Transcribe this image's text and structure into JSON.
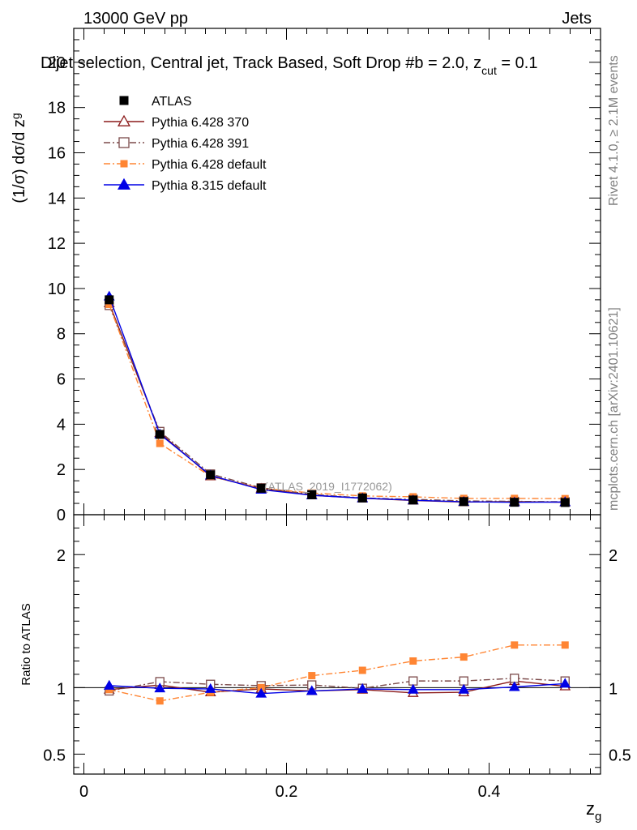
{
  "header": {
    "energy_label": "13000 GeV pp",
    "category_label": "Jets",
    "selection_title": "Dijet selection, Central jet, Track Based, Soft Drop #b = 2.0, z",
    "zcut_sub": "cut",
    "zcut_value": " = 0.1",
    "analysis_id": "(ATLAS_2019_I1772062)"
  },
  "side_labels": {
    "rivet": "Rivet 4.1.0, ≥ 2.1M events",
    "mcplots": "mcplots.cern.ch [arXiv:2401.10621]"
  },
  "chart_data": [
    {
      "type": "line",
      "panel": "main",
      "title": "Dijet selection, Central jet, Track Based, Soft Drop #b = 2.0, z_cut = 0.1",
      "ylabel_prefix": "(1/σ) dσ/d z",
      "ylabel_sub": "g",
      "xlabel": "z",
      "xlabel_sub": "g",
      "xlim": [
        -0.01,
        0.51
      ],
      "ylim": [
        0,
        21.5
      ],
      "yticks": [
        0,
        2,
        4,
        6,
        8,
        10,
        12,
        14,
        16,
        18,
        20
      ],
      "xticks": [
        0,
        0.2,
        0.4
      ],
      "x": [
        0.025,
        0.075,
        0.125,
        0.175,
        0.225,
        0.275,
        0.325,
        0.375,
        0.425,
        0.475
      ],
      "legend_position": "top-left",
      "series": [
        {
          "name": "ATLAS",
          "color": "#000000",
          "marker": "square-filled",
          "line": "none",
          "values": [
            9.5,
            3.55,
            1.76,
            1.17,
            0.88,
            0.74,
            0.65,
            0.58,
            0.55,
            0.54
          ]
        },
        {
          "name": "Pythia 6.428 370",
          "color": "#8b1a1a",
          "marker": "triangle-open",
          "line": "solid",
          "values": [
            9.35,
            3.62,
            1.7,
            1.16,
            0.86,
            0.73,
            0.63,
            0.56,
            0.58,
            0.55
          ]
        },
        {
          "name": "Pythia 6.428 391",
          "color": "#7b4a4a",
          "marker": "square-open",
          "line": "dashdot",
          "values": [
            9.25,
            3.68,
            1.8,
            1.19,
            0.9,
            0.74,
            0.68,
            0.61,
            0.59,
            0.57
          ]
        },
        {
          "name": "Pythia 6.428 default",
          "color": "#ff8533",
          "marker": "square-filled",
          "line": "dashdot",
          "values": [
            9.3,
            3.15,
            1.7,
            1.17,
            0.96,
            0.83,
            0.79,
            0.72,
            0.72,
            0.71
          ]
        },
        {
          "name": "Pythia 8.315 default",
          "color": "#0000e6",
          "marker": "triangle-filled",
          "line": "solid",
          "values": [
            9.65,
            3.56,
            1.74,
            1.11,
            0.86,
            0.73,
            0.64,
            0.57,
            0.55,
            0.56
          ]
        }
      ]
    },
    {
      "type": "line",
      "panel": "ratio",
      "ylabel": "Ratio to ATLAS",
      "ylim": [
        0.35,
        2.3
      ],
      "yticks": [
        0.5,
        1,
        2
      ],
      "ytick_labels": [
        "0.5",
        "1",
        "2"
      ],
      "x": [
        0.025,
        0.075,
        0.125,
        0.175,
        0.225,
        0.275,
        0.325,
        0.375,
        0.425,
        0.475
      ],
      "series": [
        {
          "name": "Pythia 6.428 370",
          "color": "#8b1a1a",
          "marker": "triangle-open",
          "line": "solid",
          "values": [
            0.985,
            1.02,
            0.965,
            0.99,
            0.975,
            0.985,
            0.96,
            0.965,
            1.05,
            1.01
          ]
        },
        {
          "name": "Pythia 6.428 391",
          "color": "#7b4a4a",
          "marker": "square-open",
          "line": "dashdot",
          "values": [
            0.975,
            1.045,
            1.025,
            1.015,
            1.02,
            0.995,
            1.05,
            1.05,
            1.07,
            1.05
          ]
        },
        {
          "name": "Pythia 6.428 default",
          "color": "#ff8533",
          "marker": "square-filled",
          "line": "dashdot",
          "values": [
            0.985,
            0.9,
            0.965,
            1.0,
            1.09,
            1.13,
            1.2,
            1.23,
            1.32,
            1.32
          ]
        },
        {
          "name": "Pythia 8.315 default",
          "color": "#0000e6",
          "marker": "triangle-filled",
          "line": "solid",
          "values": [
            1.015,
            0.995,
            0.99,
            0.955,
            0.975,
            0.99,
            0.985,
            0.985,
            1.005,
            1.03
          ]
        }
      ]
    }
  ]
}
